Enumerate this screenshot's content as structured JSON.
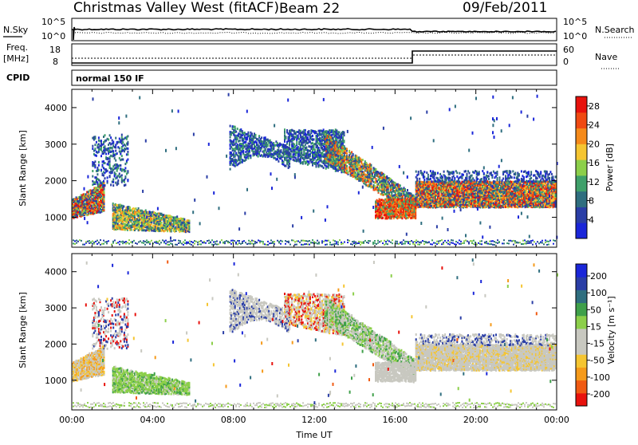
{
  "header": {
    "station": "Christmas Valley West (fitACF)",
    "beam": "Beam 22",
    "date": "09/Feb/2011"
  },
  "top_panels": {
    "nsky": {
      "label": "N.Sky",
      "ticks": [
        "10^5",
        "10^0"
      ]
    },
    "nsearch": {
      "label": "N.Search",
      "ticks": [
        "10^5",
        "10^0"
      ]
    },
    "freq": {
      "label_line1": "Freq.",
      "label_line2": "[MHz]",
      "ticks": [
        "18",
        "8"
      ]
    },
    "nave": {
      "label": "Nave",
      "ticks": [
        "60",
        "0"
      ]
    },
    "cpid": {
      "label": "CPID",
      "value": "normal 150 IF"
    }
  },
  "colors": {
    "power": [
      "#1a26d9",
      "#2a3ea6",
      "#2f6e7f",
      "#3fa06a",
      "#8ccf4a",
      "#f5c531",
      "#f58a1a",
      "#f04a12",
      "#e8120d"
    ],
    "velocity": [
      "#e8120d",
      "#f05a12",
      "#f59a1a",
      "#f5c531",
      "#c8c8c0",
      "#c8c8c0",
      "#8ccf4a",
      "#3fa04a",
      "#2f6e7f",
      "#2a3ea6",
      "#1a26d9"
    ]
  },
  "chart_data": [
    {
      "type": "heatmap",
      "name": "power",
      "xlabel": "",
      "ylabel": "Slant Range [km]",
      "xlim": [
        0,
        24
      ],
      "ylim": [
        180,
        4500
      ],
      "x_ticks": [
        "00:00",
        "04:00",
        "08:00",
        "12:00",
        "16:00",
        "20:00",
        "00:00"
      ],
      "y_ticks": [
        "1000",
        "2000",
        "3000",
        "4000"
      ],
      "colorbar_label": "Power [dB]",
      "colorbar_ticks": [
        "4",
        "8",
        "12",
        "16",
        "20",
        "24",
        "28"
      ],
      "colorbar_range": [
        0,
        30
      ]
    },
    {
      "type": "heatmap",
      "name": "velocity",
      "xlabel": "Time UT",
      "ylabel": "Slant Range [km]",
      "xlim": [
        0,
        24
      ],
      "ylim": [
        180,
        4500
      ],
      "x_ticks": [
        "00:00",
        "04:00",
        "08:00",
        "12:00",
        "16:00",
        "20:00",
        "00:00"
      ],
      "y_ticks": [
        "1000",
        "2000",
        "3000",
        "4000"
      ],
      "colorbar_label": "Velocity [m s⁻¹]",
      "colorbar_ticks": [
        "200",
        "100",
        "50",
        "15",
        "-15",
        "-50",
        "-100",
        "-200"
      ]
    }
  ]
}
